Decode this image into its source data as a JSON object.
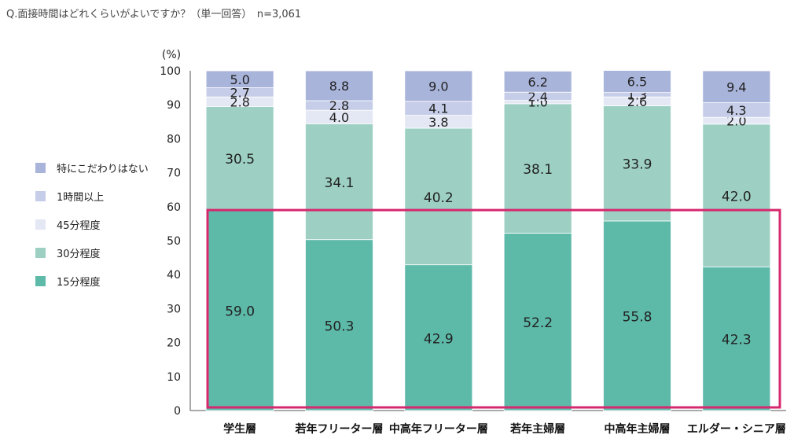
{
  "question": "Q.面接時間はどれくらいがよいですか？（単一回答）　n=3,061",
  "chart_data": {
    "type": "bar",
    "stacked": true,
    "unit_label": "(%)",
    "ylim": [
      0,
      100
    ],
    "yticks": [
      0,
      10,
      20,
      30,
      40,
      50,
      60,
      70,
      80,
      90,
      100
    ],
    "categories": [
      "学生層",
      "若年フリーター層",
      "中高年フリーター層",
      "若年主婦層",
      "中高年主婦層",
      "エルダー・シニア層"
    ],
    "series": [
      {
        "name": "15分程度",
        "color": "#5dbaa9",
        "values": [
          59.0,
          50.3,
          42.9,
          52.2,
          55.8,
          42.3
        ]
      },
      {
        "name": "30分程度",
        "color": "#9dd0c3",
        "values": [
          30.5,
          34.1,
          40.2,
          38.1,
          33.9,
          42.0
        ]
      },
      {
        "name": "45分程度",
        "color": "#e4e8f4",
        "values": [
          2.8,
          4.0,
          3.8,
          1.0,
          2.6,
          2.0
        ]
      },
      {
        "name": "1時間以上",
        "color": "#c6cde8",
        "values": [
          2.7,
          2.8,
          4.1,
          2.4,
          1.3,
          4.3
        ]
      },
      {
        "name": "特にこだわりはない",
        "color": "#a9b4db",
        "values": [
          5.0,
          8.8,
          9.0,
          6.2,
          6.5,
          9.4
        ]
      }
    ],
    "legend_order": [
      "特にこだわりはない",
      "1時間以上",
      "45分程度",
      "30分程度",
      "15分程度"
    ],
    "legend_position": "left",
    "highlight": {
      "color": "#d6286e",
      "from_value": 0,
      "to_value": 59
    }
  }
}
